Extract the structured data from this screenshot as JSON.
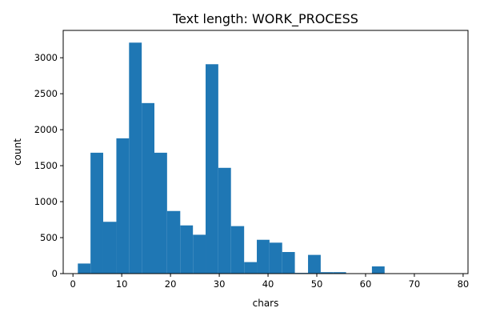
{
  "chart_data": {
    "type": "bar",
    "title": "Text length: WORK_PROCESS",
    "xlabel": "chars",
    "ylabel": "count",
    "xlim": [
      -2,
      81
    ],
    "ylim": [
      0,
      3380
    ],
    "xticks": [
      0,
      10,
      20,
      30,
      40,
      50,
      60,
      70,
      80
    ],
    "yticks": [
      0,
      500,
      1000,
      1500,
      2000,
      2500,
      3000
    ],
    "bar_color": "#1f77b4",
    "grid": false,
    "legend": "none",
    "bins": [
      {
        "x0": 1.0,
        "x1": 3.6,
        "value": 140
      },
      {
        "x0": 3.6,
        "x1": 6.2,
        "value": 1680
      },
      {
        "x0": 6.2,
        "x1": 8.9,
        "value": 720
      },
      {
        "x0": 8.9,
        "x1": 11.5,
        "value": 1880
      },
      {
        "x0": 11.5,
        "x1": 14.1,
        "value": 3210
      },
      {
        "x0": 14.1,
        "x1": 16.7,
        "value": 2370
      },
      {
        "x0": 16.7,
        "x1": 19.3,
        "value": 1680
      },
      {
        "x0": 19.3,
        "x1": 22.0,
        "value": 870
      },
      {
        "x0": 22.0,
        "x1": 24.6,
        "value": 670
      },
      {
        "x0": 24.6,
        "x1": 27.2,
        "value": 540
      },
      {
        "x0": 27.2,
        "x1": 29.8,
        "value": 2910
      },
      {
        "x0": 29.8,
        "x1": 32.4,
        "value": 1470
      },
      {
        "x0": 32.4,
        "x1": 35.1,
        "value": 660
      },
      {
        "x0": 35.1,
        "x1": 37.7,
        "value": 160
      },
      {
        "x0": 37.7,
        "x1": 40.3,
        "value": 470
      },
      {
        "x0": 40.3,
        "x1": 42.9,
        "value": 430
      },
      {
        "x0": 42.9,
        "x1": 45.5,
        "value": 300
      },
      {
        "x0": 45.5,
        "x1": 48.2,
        "value": 10
      },
      {
        "x0": 48.2,
        "x1": 50.8,
        "value": 260
      },
      {
        "x0": 50.8,
        "x1": 53.4,
        "value": 20
      },
      {
        "x0": 53.4,
        "x1": 56.0,
        "value": 20
      },
      {
        "x0": 56.0,
        "x1": 58.6,
        "value": 0
      },
      {
        "x0": 58.6,
        "x1": 61.3,
        "value": 0
      },
      {
        "x0": 61.3,
        "x1": 63.9,
        "value": 100
      },
      {
        "x0": 63.9,
        "x1": 66.5,
        "value": 0
      },
      {
        "x0": 66.5,
        "x1": 69.1,
        "value": 0
      },
      {
        "x0": 69.1,
        "x1": 71.7,
        "value": 0
      },
      {
        "x0": 71.7,
        "x1": 74.4,
        "value": 0
      },
      {
        "x0": 74.4,
        "x1": 77.0,
        "value": 0
      },
      {
        "x0": 77.0,
        "x1": 79.6,
        "value": 5
      }
    ]
  }
}
